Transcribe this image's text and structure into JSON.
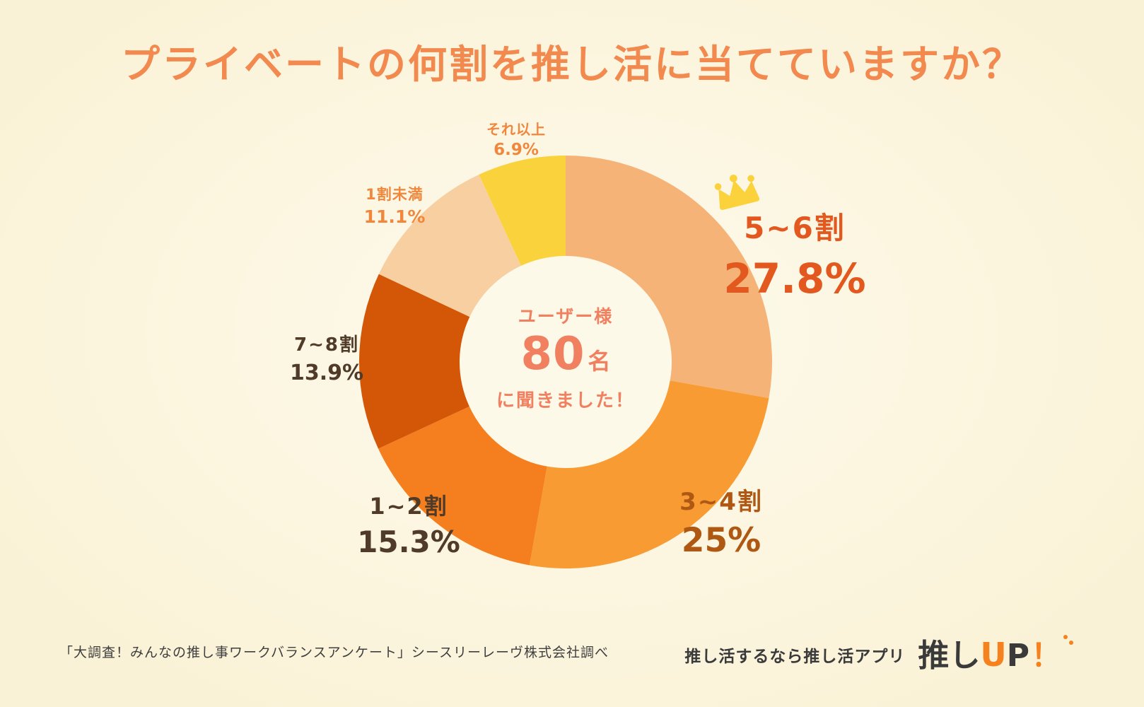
{
  "title": "プライベートの何割を推し活に当てていますか？",
  "chart_data": {
    "type": "pie",
    "variant": "donut",
    "title": "プライベートの何割を推し活に当てていますか？",
    "unit": "%",
    "start_angle_deg": 0,
    "direction": "clockwise",
    "inner_radius_ratio": 0.51,
    "total_respondents": 80,
    "segments": [
      {
        "label": "5~6割",
        "value": 27.8,
        "value_label": "27.8%",
        "color": "#F6B377",
        "highlight": true
      },
      {
        "label": "3~4割",
        "value": 25,
        "value_label": "25%",
        "color": "#F99B33",
        "highlight": false
      },
      {
        "label": "1~2割",
        "value": 15.3,
        "value_label": "15.3%",
        "color": "#F57F1F",
        "highlight": false
      },
      {
        "label": "7~8割",
        "value": 13.9,
        "value_label": "13.9%",
        "color": "#D45607",
        "highlight": false
      },
      {
        "label": "1割未満",
        "value": 11.1,
        "value_label": "11.1%",
        "color": "#F7CFA0",
        "highlight": false
      },
      {
        "label": "それ以上",
        "value": 6.9,
        "value_label": "6.9%",
        "color": "#FAD33C",
        "highlight": false
      }
    ],
    "center_text": {
      "line1": "ユーザー様",
      "number": "80",
      "number_suffix": "名",
      "line3": "に聞きました！"
    }
  },
  "footer": {
    "source": "「大調査！みんなの推し事ワークバランスアンケート」シースリーレーヴ株式会社調べ",
    "promo": "推し活するなら推し活アプリ",
    "logo": {
      "part1": "推し",
      "part2": "U",
      "part3": "P",
      "part4": "！"
    }
  },
  "colors": {
    "background": "#FBF4DB",
    "title": "#F28A50",
    "center_text": "#F08060",
    "highlight_label": "#E2581E",
    "dark_label": "#503A28",
    "orange_label": "#F0873C",
    "crown": "#FBD23B",
    "logo_accent": "#F5821F",
    "footer_text": "#3E3E3E"
  }
}
